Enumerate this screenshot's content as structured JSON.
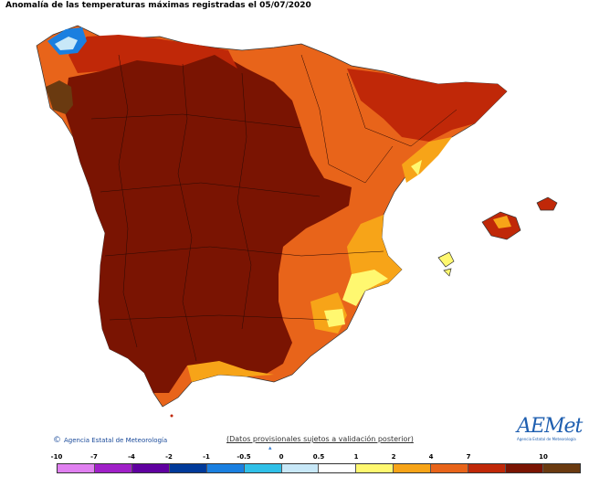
{
  "title": "Anomalía de las temperaturas máximas registradas el 05/07/2020",
  "credit": "Agencia Estatal de Meteorología",
  "disclaimer": "(Datos provisionales sujetos a validación posterior)",
  "logo": {
    "name": "AEMet",
    "subtitle": "Agencia Estatal de Meteorología"
  },
  "legend": {
    "ticks": [
      {
        "label": "-10"
      },
      {
        "label": "-7"
      },
      {
        "label": "-4"
      },
      {
        "label": "-2"
      },
      {
        "label": "-1"
      },
      {
        "label": "-0.5"
      },
      {
        "label": "0"
      },
      {
        "label": "0.5"
      },
      {
        "label": "1"
      },
      {
        "label": "2"
      },
      {
        "label": "4"
      },
      {
        "label": "7"
      },
      {
        "label": "10"
      }
    ],
    "colors": [
      "#e080f0",
      "#a020c8",
      "#6000a0",
      "#003a9a",
      "#1a7fe0",
      "#30c0e8",
      "#c8e8f8",
      "#ffffff",
      "#fff870",
      "#f7a418",
      "#e8641a",
      "#c02808",
      "#7a1402",
      "#6a3a10"
    ],
    "marker": "▴"
  },
  "map_colors": {
    "very_high": "#7a1402",
    "high": "#c02808",
    "med_high": "#e8641a",
    "medium": "#f7a418",
    "low": "#fff870",
    "brown": "#6a3a10",
    "blue": "#1a7fe0",
    "light_blue": "#c8e8f8"
  }
}
